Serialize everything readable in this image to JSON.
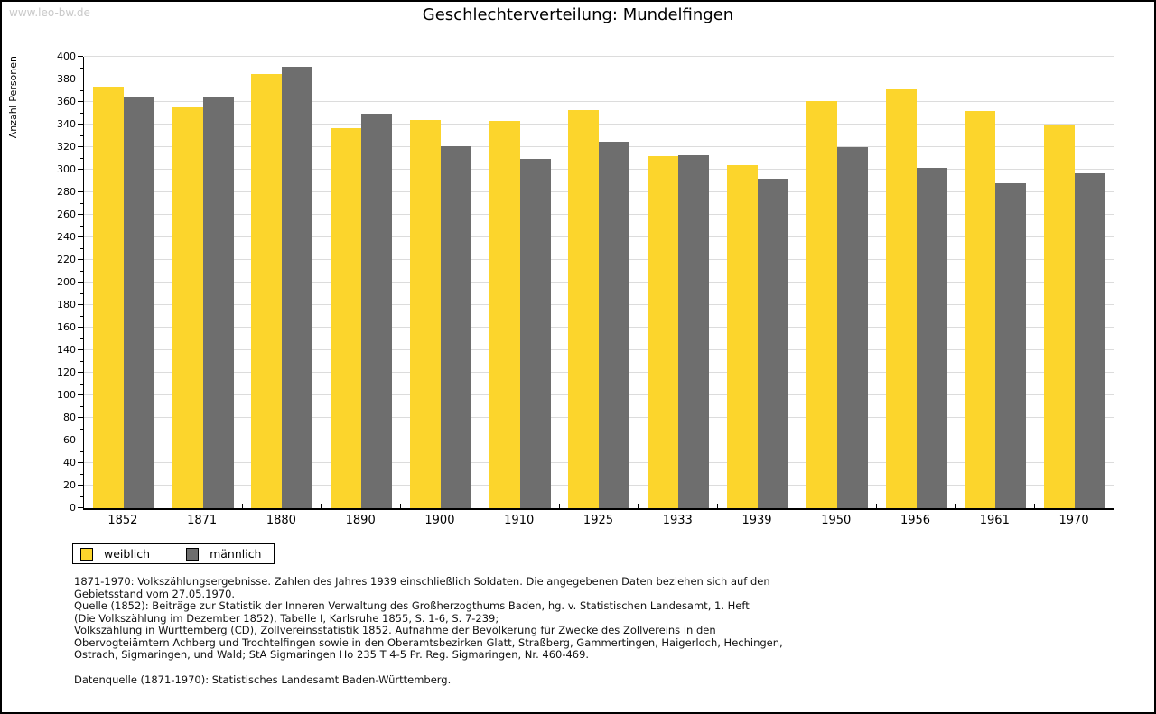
{
  "header": {
    "watermark": "www.leo-bw.de",
    "title": "Geschlechterverteilung: Mundelfingen"
  },
  "chart_data": {
    "type": "bar",
    "title": "Geschlechterverteilung: Mundelfingen",
    "xlabel": "",
    "ylabel": "Anzahl Personen",
    "categories": [
      "1852",
      "1871",
      "1880",
      "1890",
      "1900",
      "1910",
      "1925",
      "1933",
      "1939",
      "1950",
      "1956",
      "1961",
      "1970"
    ],
    "series": [
      {
        "name": "weiblich",
        "color": "#fcd52c",
        "values": [
          374,
          356,
          385,
          337,
          344,
          343,
          353,
          312,
          304,
          361,
          371,
          352,
          340
        ]
      },
      {
        "name": "männlich",
        "color": "#6e6e6e",
        "values": [
          364,
          364,
          391,
          350,
          321,
          310,
          325,
          313,
          292,
          320,
          302,
          288,
          297
        ]
      }
    ],
    "ylim": [
      0,
      400
    ],
    "ytick_step": 20,
    "yminor_step": 10,
    "grid": "horizontal",
    "legend_position": "bottom-left",
    "gridline_color": "#dcdcdc"
  },
  "footer": {
    "lines": [
      "1871-1970: Volkszählungsergebnisse. Zahlen des Jahres 1939 einschließlich Soldaten. Die angegebenen Daten beziehen sich auf den",
      "Gebietsstand vom 27.05.1970.",
      "Quelle (1852): Beiträge zur Statistik der Inneren Verwaltung des Großherzogthums Baden, hg. v. Statistischen Landesamt, 1. Heft",
      "(Die Volkszählung im Dezember 1852), Tabelle I, Karlsruhe 1855, S. 1-6, S. 7-239;",
      "Volkszählung in Württemberg (CD), Zollvereinsstatistik 1852. Aufnahme der Bevölkerung für Zwecke des Zollvereins in den",
      "Obervogteiämtern Achberg und Trochtelfingen sowie in den Oberamtsbezirken Glatt, Straßberg, Gammertingen, Haigerloch, Hechingen,",
      "Ostrach, Sigmaringen, und Wald; StA Sigmaringen Ho 235 T 4-5 Pr. Reg. Sigmaringen, Nr. 460-469."
    ],
    "datenquelle": "Datenquelle (1871-1970): Statistisches Landesamt Baden-Württemberg."
  }
}
